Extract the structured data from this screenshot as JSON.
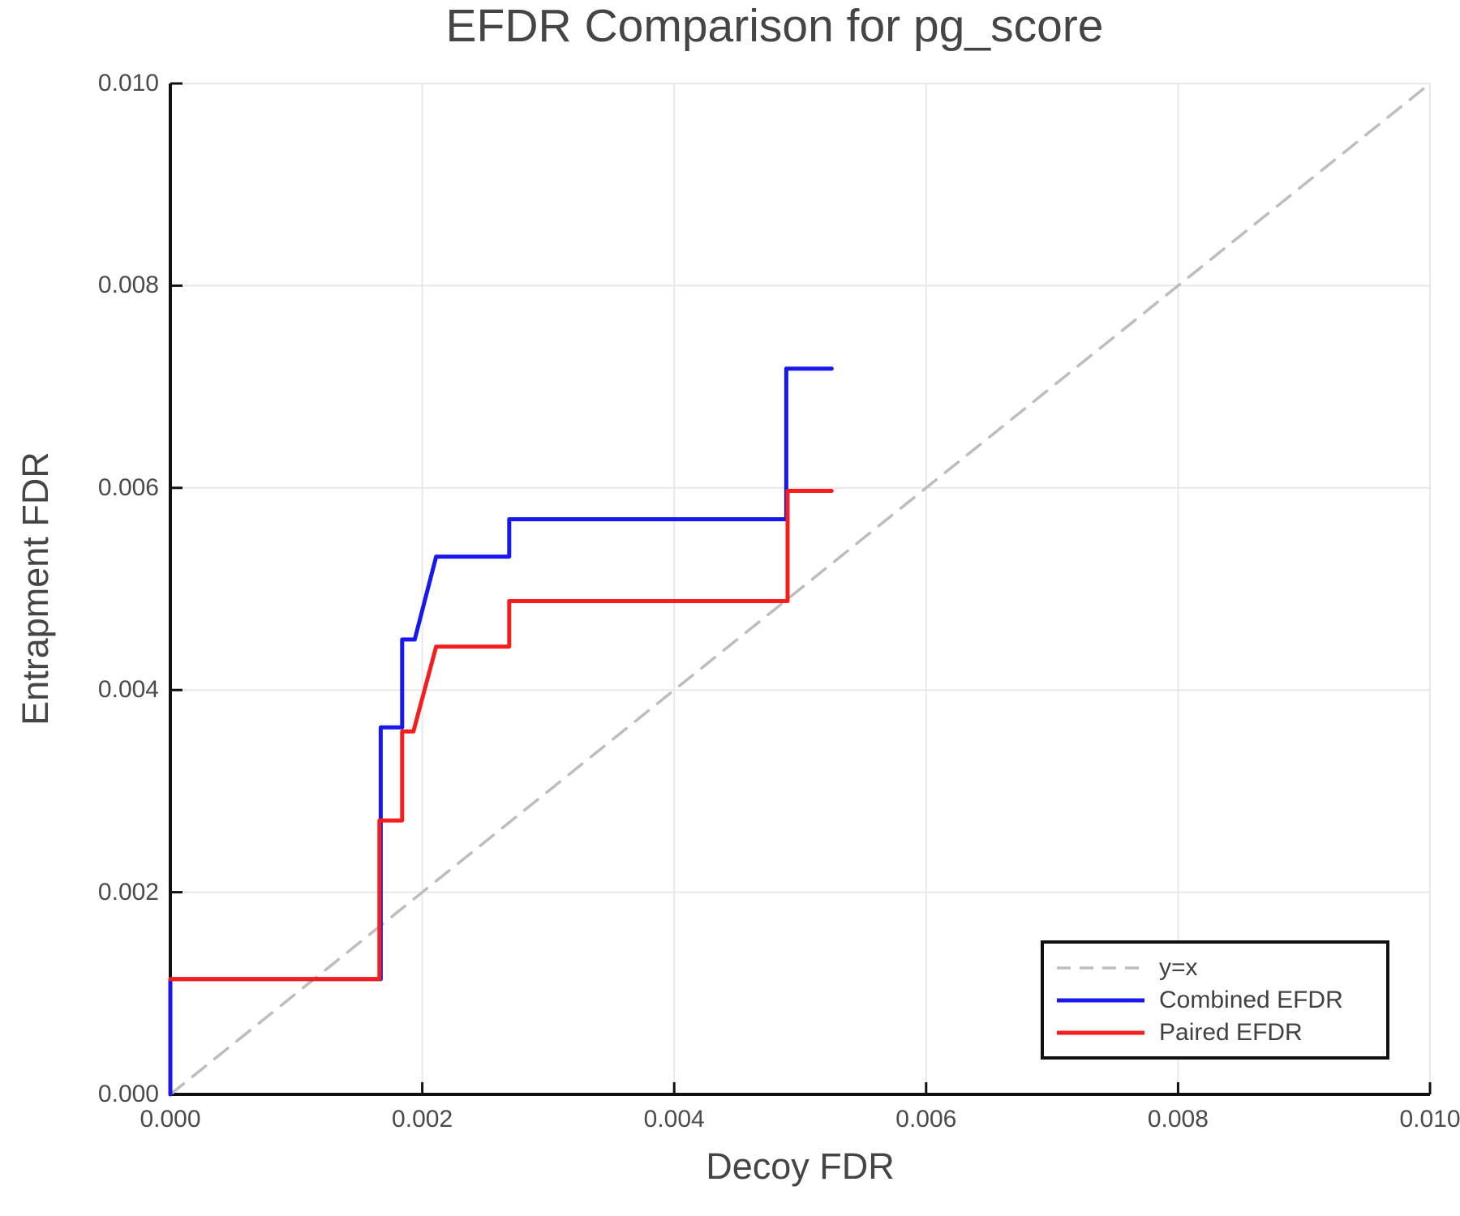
{
  "title": "EFDR Comparison for pg_score",
  "chart_data": {
    "type": "line",
    "title": "EFDR Comparison for pg_score",
    "xlabel": "Decoy FDR",
    "ylabel": "Entrapment FDR",
    "xlim": [
      0.0,
      0.01
    ],
    "ylim": [
      0.0,
      0.01
    ],
    "x_ticks": [
      0.0,
      0.002,
      0.004,
      0.006,
      0.008,
      0.01
    ],
    "y_ticks": [
      0.0,
      0.002,
      0.004,
      0.006,
      0.008,
      0.01
    ],
    "tick_decimals": 3,
    "grid": true,
    "grid_color": "#e8e8e8",
    "axis_color": "#111111",
    "legend_position": "lower-right",
    "series": [
      {
        "name": "y=x",
        "style": "dashed",
        "color": "#bdbdbd",
        "width": 3.5,
        "points": [
          [
            0.0,
            0.0
          ],
          [
            0.01,
            0.01
          ]
        ]
      },
      {
        "name": "Combined EFDR",
        "style": "solid",
        "color": "#1818ee",
        "width": 5,
        "points": [
          [
            0.0,
            0.0
          ],
          [
            0.0,
            0.00114
          ],
          [
            0.00167,
            0.00114
          ],
          [
            0.00167,
            0.00363
          ],
          [
            0.00184,
            0.00363
          ],
          [
            0.00184,
            0.0045
          ],
          [
            0.00194,
            0.0045
          ],
          [
            0.00211,
            0.00532
          ],
          [
            0.00269,
            0.00532
          ],
          [
            0.00269,
            0.00569
          ],
          [
            0.00489,
            0.00569
          ],
          [
            0.00489,
            0.00718
          ],
          [
            0.00525,
            0.00718
          ]
        ]
      },
      {
        "name": "Paired EFDR",
        "style": "solid",
        "color": "#f51e1e",
        "width": 5,
        "points": [
          [
            0.0,
            0.00114
          ],
          [
            0.00166,
            0.00114
          ],
          [
            0.00166,
            0.00271
          ],
          [
            0.00184,
            0.00271
          ],
          [
            0.00184,
            0.00359
          ],
          [
            0.00193,
            0.00359
          ],
          [
            0.00211,
            0.00443
          ],
          [
            0.00269,
            0.00443
          ],
          [
            0.00269,
            0.00488
          ],
          [
            0.0049,
            0.00488
          ],
          [
            0.0049,
            0.00597
          ],
          [
            0.00525,
            0.00597
          ]
        ]
      }
    ]
  }
}
